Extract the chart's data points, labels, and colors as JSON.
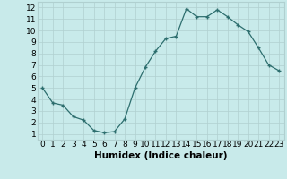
{
  "x": [
    0,
    1,
    2,
    3,
    4,
    5,
    6,
    7,
    8,
    9,
    10,
    11,
    12,
    13,
    14,
    15,
    16,
    17,
    18,
    19,
    20,
    21,
    22,
    23
  ],
  "y": [
    5.0,
    3.7,
    3.5,
    2.5,
    2.2,
    1.3,
    1.1,
    1.2,
    2.3,
    5.0,
    6.8,
    8.2,
    9.3,
    9.5,
    11.9,
    11.2,
    11.2,
    11.8,
    11.2,
    10.5,
    9.9,
    8.5,
    7.0,
    6.5
  ],
  "xlabel": "Humidex (Indice chaleur)",
  "line_color": "#2d6e6e",
  "marker": "+",
  "bg_color": "#c8eaea",
  "grid_color": "#b0d0d0",
  "xlim": [
    -0.5,
    23.5
  ],
  "ylim": [
    0.5,
    12.5
  ],
  "xticks": [
    0,
    1,
    2,
    3,
    4,
    5,
    6,
    7,
    8,
    9,
    10,
    11,
    12,
    13,
    14,
    15,
    16,
    17,
    18,
    19,
    20,
    21,
    22,
    23
  ],
  "yticks": [
    1,
    2,
    3,
    4,
    5,
    6,
    7,
    8,
    9,
    10,
    11,
    12
  ],
  "xtick_labels": [
    "0",
    "1",
    "2",
    "3",
    "4",
    "5",
    "6",
    "7",
    "8",
    "9",
    "10",
    "11",
    "12",
    "13",
    "14",
    "15",
    "16",
    "17",
    "18",
    "19",
    "20",
    "21",
    "22",
    "23"
  ],
  "ytick_labels": [
    "1",
    "2",
    "3",
    "4",
    "5",
    "6",
    "7",
    "8",
    "9",
    "10",
    "11",
    "12"
  ],
  "tick_fontsize": 6.5,
  "label_fontsize": 7.5
}
